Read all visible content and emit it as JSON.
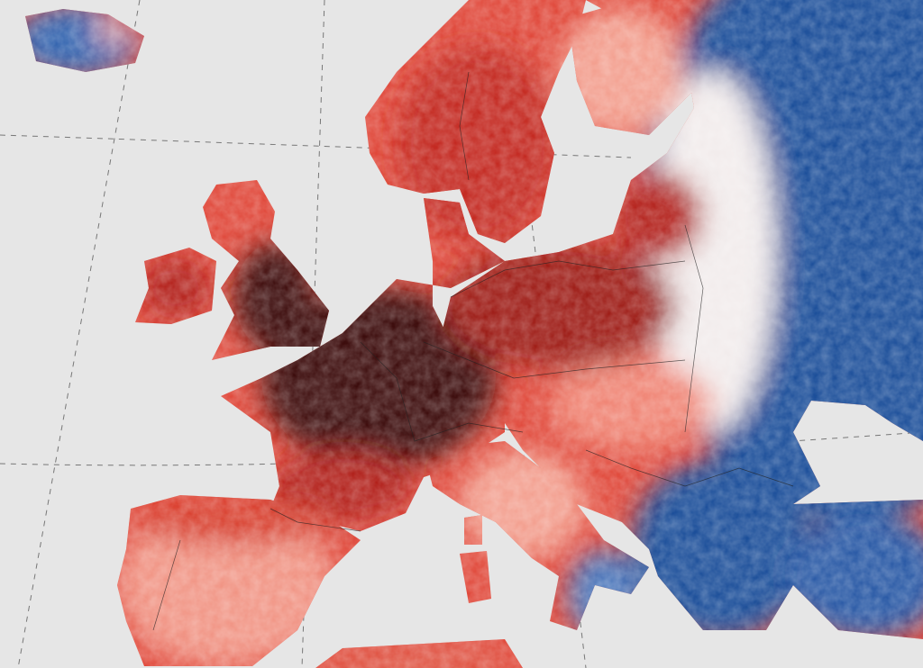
{
  "map": {
    "background": "#e6e6e6",
    "colors": {
      "very_hot": "#3d0f0f",
      "hot": "#b3201c",
      "warm": "#e0483a",
      "mild_warm": "#f3a090",
      "neutral": "#f2ecec",
      "cool": "#6a8fc8",
      "cold": "#1f4f9a"
    },
    "regions": [
      {
        "name": "iceland",
        "anomaly": "cold"
      },
      {
        "name": "norway-sweden",
        "anomaly": "hot"
      },
      {
        "name": "finland",
        "anomaly": "mild_warm"
      },
      {
        "name": "eastern-europe-russia",
        "anomaly": "cold"
      },
      {
        "name": "great-britain",
        "anomaly": "very_hot"
      },
      {
        "name": "ireland",
        "anomaly": "hot"
      },
      {
        "name": "france-benelux-germany",
        "anomaly": "very_hot"
      },
      {
        "name": "poland-central-europe",
        "anomaly": "hot"
      },
      {
        "name": "iberia",
        "anomaly": "mild_warm"
      },
      {
        "name": "italy",
        "anomaly": "mild_warm"
      },
      {
        "name": "balkans-greece",
        "anomaly": "cold"
      },
      {
        "name": "turkey",
        "anomaly": "cold"
      }
    ]
  }
}
